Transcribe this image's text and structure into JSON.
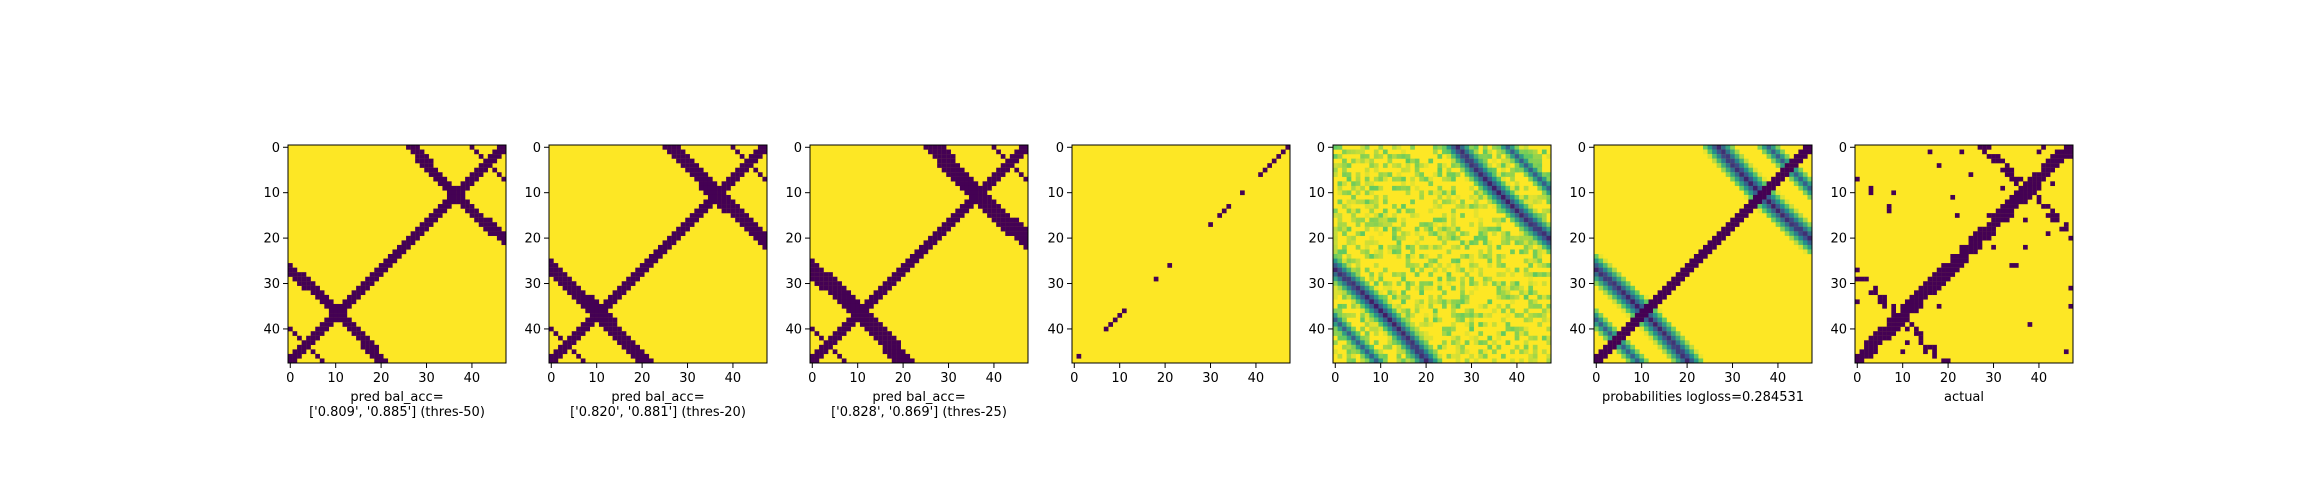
{
  "figure": {
    "colormap": "viridis",
    "colors": {
      "low": "#440154",
      "mid": "#21918c",
      "high": "#fde725"
    }
  },
  "chart_data": [
    {
      "type": "heatmap",
      "panel": "pred-thres-50",
      "size": 48,
      "xticks": [
        0,
        10,
        20,
        30,
        40
      ],
      "yticks": [
        0,
        10,
        20,
        30,
        40
      ],
      "xlabel": [
        "pred bal_acc=",
        "['0.809', '0.885'] (thres-50)"
      ],
      "pattern": "binary",
      "description_of_marks": "anti-diagonal band plus curved parallel streaks"
    },
    {
      "type": "heatmap",
      "panel": "pred-thres-20",
      "size": 48,
      "xticks": [
        0,
        10,
        20,
        30,
        40
      ],
      "yticks": [
        0,
        10,
        20,
        30,
        40
      ],
      "xlabel": [
        "pred bal_acc=",
        "['0.820', '0.881'] (thres-20)"
      ],
      "pattern": "binary"
    },
    {
      "type": "heatmap",
      "panel": "pred-thres-25",
      "size": 48,
      "xticks": [
        0,
        10,
        20,
        30,
        40
      ],
      "yticks": [
        0,
        10,
        20,
        30,
        40
      ],
      "xlabel": [
        "pred bal_acc=",
        "['0.828', '0.869'] (thres-25)"
      ],
      "pattern": "binary"
    },
    {
      "type": "heatmap",
      "panel": "sparse-diagonal",
      "size": 48,
      "xticks": [
        0,
        10,
        20,
        30,
        40
      ],
      "yticks": [
        0,
        10,
        20,
        30,
        40
      ],
      "xlabel": [
        "",
        ""
      ],
      "pattern": "binary"
    },
    {
      "type": "heatmap",
      "panel": "continuous",
      "size": 48,
      "xticks": [
        0,
        10,
        20,
        30,
        40
      ],
      "yticks": [
        0,
        10,
        20,
        30,
        40
      ],
      "xlabel": [
        "",
        ""
      ],
      "pattern": "continuous"
    },
    {
      "type": "heatmap",
      "panel": "probabilities",
      "size": 48,
      "xticks": [
        0,
        10,
        20,
        30,
        40
      ],
      "yticks": [
        0,
        10,
        20,
        30,
        40
      ],
      "xlabel": [
        "probabilities logloss=0.284531",
        ""
      ],
      "pattern": "continuous"
    },
    {
      "type": "heatmap",
      "panel": "actual",
      "size": 48,
      "xticks": [
        0,
        10,
        20,
        30,
        40
      ],
      "yticks": [
        0,
        10,
        20,
        30,
        40
      ],
      "xlabel": [
        "actual",
        ""
      ],
      "pattern": "binary"
    }
  ]
}
